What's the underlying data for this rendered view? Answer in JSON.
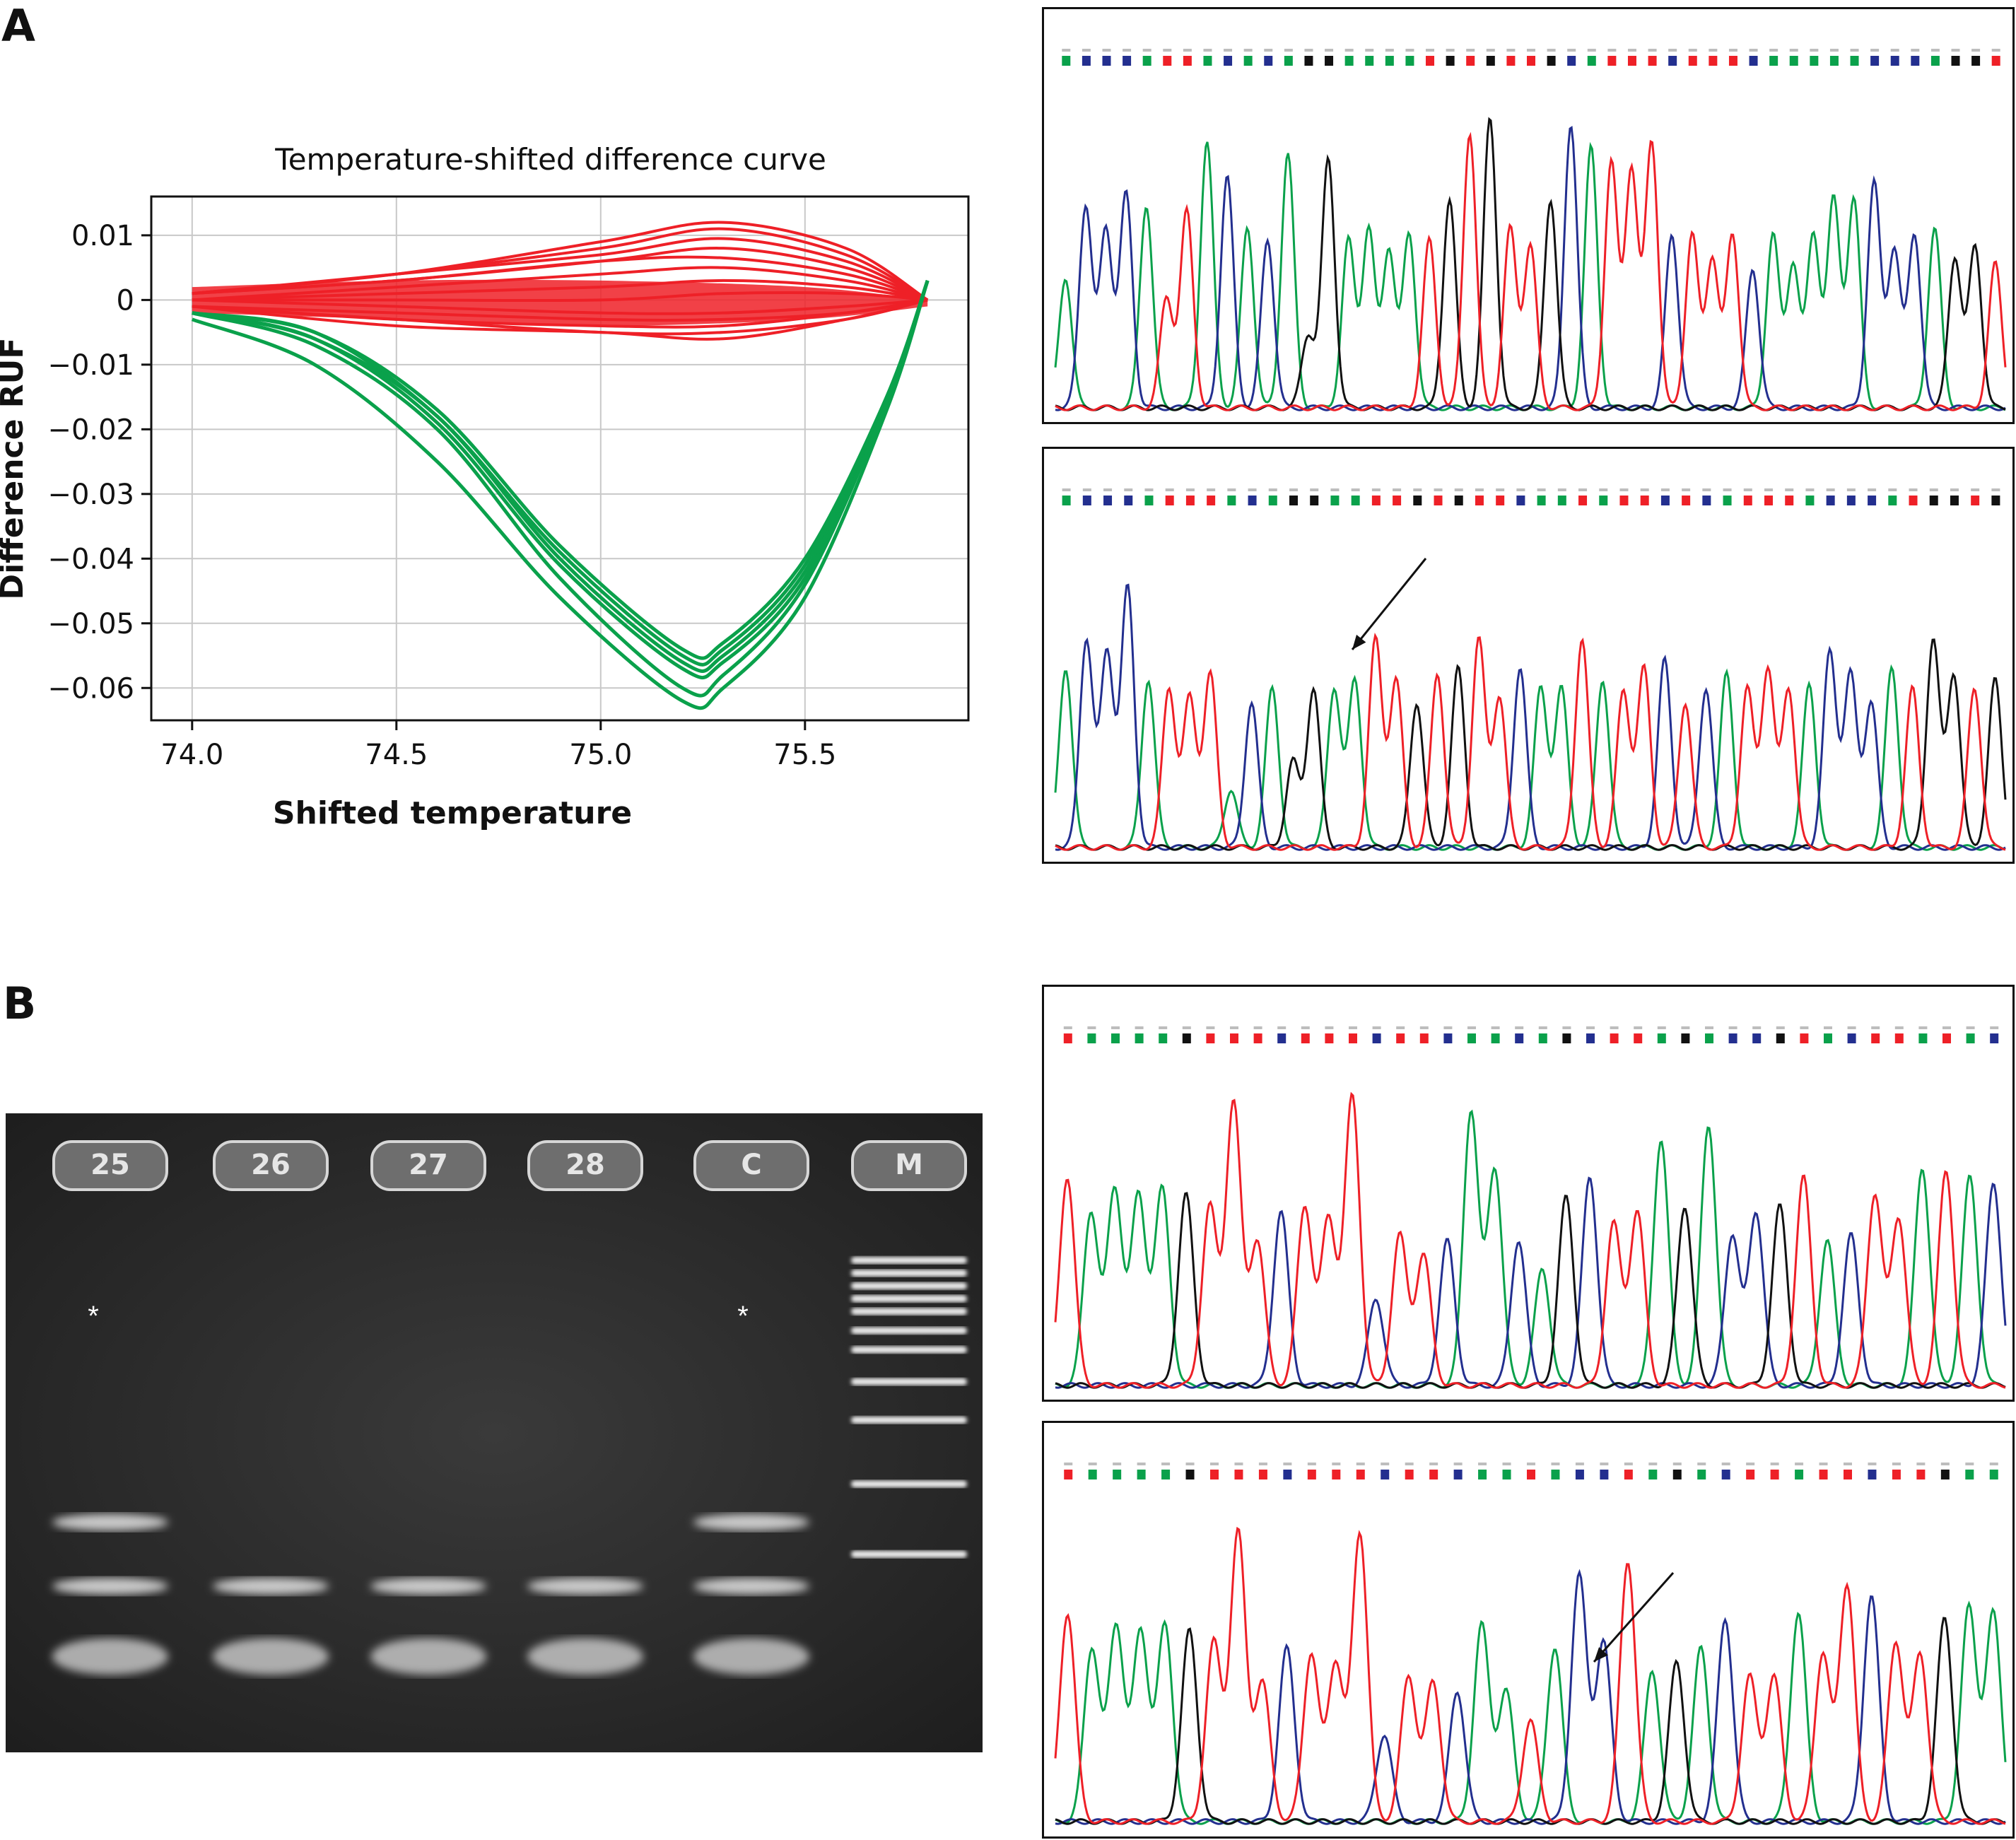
{
  "panel_labels": {
    "a": "A",
    "b": "B"
  },
  "chart_data": [
    {
      "type": "line",
      "title": "Temperature-shifted difference curve",
      "xlabel": "Shifted temperature",
      "ylabel": "Difference RUF",
      "xlim": [
        73.9,
        75.9
      ],
      "ylim": [
        -0.065,
        0.016
      ],
      "xticks": [
        74.0,
        74.5,
        75.0,
        75.5
      ],
      "xtick_labels": [
        "74.0",
        "74.5",
        "75.0",
        "75.5"
      ],
      "yticks": [
        0.01,
        0,
        -0.01,
        -0.02,
        -0.03,
        -0.04,
        -0.05,
        -0.06
      ],
      "ytick_labels": [
        "0.01",
        "0",
        "−0.01",
        "−0.02",
        "−0.03",
        "−0.04",
        "−0.05",
        "−0.06"
      ],
      "grid": true,
      "colors": {
        "wild_type": "#ee2027",
        "variant": "#0aa14b"
      },
      "series": [
        {
          "group": "wild_type",
          "x": [
            74.0,
            74.5,
            75.0,
            75.3,
            75.6,
            75.8
          ],
          "y": [
            0.001,
            0.004,
            0.009,
            0.012,
            0.008,
            0.0
          ]
        },
        {
          "group": "wild_type",
          "x": [
            74.0,
            74.5,
            75.0,
            75.3,
            75.6,
            75.8
          ],
          "y": [
            0.001,
            0.004,
            0.008,
            0.011,
            0.007,
            0.0
          ]
        },
        {
          "group": "wild_type",
          "x": [
            74.0,
            74.5,
            75.0,
            75.3,
            75.6,
            75.8
          ],
          "y": [
            0.001,
            0.004,
            0.007,
            0.0095,
            0.006,
            0.0
          ]
        },
        {
          "group": "wild_type",
          "x": [
            74.0,
            74.5,
            75.0,
            75.3,
            75.6,
            75.8
          ],
          "y": [
            0.001,
            0.003,
            0.006,
            0.008,
            0.005,
            0.0
          ]
        },
        {
          "group": "wild_type",
          "x": [
            74.0,
            74.5,
            75.0,
            75.3,
            75.6,
            75.8
          ],
          "y": [
            0.001,
            0.003,
            0.006,
            0.0065,
            0.004,
            0.0
          ]
        },
        {
          "group": "wild_type",
          "x": [
            74.0,
            74.5,
            75.0,
            75.3,
            75.6,
            75.8
          ],
          "y": [
            0.0,
            0.002,
            0.004,
            0.005,
            0.003,
            0.0
          ]
        },
        {
          "group": "wild_type",
          "x": [
            74.0,
            74.5,
            75.0,
            75.3,
            75.6,
            75.8
          ],
          "y": [
            0.0,
            0.001,
            0.002,
            0.003,
            0.002,
            0.0
          ]
        },
        {
          "group": "wild_type",
          "x": [
            74.0,
            74.5,
            75.0,
            75.3,
            75.6,
            75.8
          ],
          "y": [
            0.0,
            0.0,
            0.0,
            0.001,
            0.001,
            0.0
          ]
        },
        {
          "group": "wild_type",
          "x": [
            74.0,
            74.5,
            75.0,
            75.3,
            75.6,
            75.8
          ],
          "y": [
            0.0,
            -0.001,
            -0.002,
            -0.002,
            -0.001,
            0.0
          ]
        },
        {
          "group": "wild_type",
          "x": [
            74.0,
            74.5,
            75.0,
            75.3,
            75.6,
            75.8
          ],
          "y": [
            -0.001,
            -0.002,
            -0.003,
            -0.003,
            -0.002,
            0.0
          ]
        },
        {
          "group": "wild_type",
          "x": [
            74.0,
            74.5,
            75.0,
            75.3,
            75.6,
            75.8
          ],
          "y": [
            -0.001,
            -0.003,
            -0.004,
            -0.004,
            -0.002,
            0.0
          ]
        },
        {
          "group": "wild_type",
          "x": [
            74.0,
            74.5,
            75.0,
            75.3,
            75.6,
            75.8
          ],
          "y": [
            -0.001,
            -0.003,
            -0.005,
            -0.005,
            -0.003,
            0.0
          ]
        },
        {
          "group": "wild_type",
          "x": [
            74.0,
            74.5,
            75.0,
            75.3,
            75.6,
            75.8
          ],
          "y": [
            -0.001,
            -0.004,
            -0.005,
            -0.006,
            -0.003,
            0.0
          ]
        },
        {
          "group": "variant",
          "x": [
            74.0,
            74.3,
            74.6,
            74.9,
            75.2,
            75.3,
            75.5,
            75.7,
            75.8
          ],
          "y": [
            -0.002,
            -0.005,
            -0.017,
            -0.038,
            -0.054,
            -0.053,
            -0.04,
            -0.015,
            0.003
          ]
        },
        {
          "group": "variant",
          "x": [
            74.0,
            74.3,
            74.6,
            74.9,
            75.2,
            75.3,
            75.5,
            75.7,
            75.8
          ],
          "y": [
            -0.002,
            -0.005,
            -0.018,
            -0.039,
            -0.055,
            -0.054,
            -0.041,
            -0.015,
            0.003
          ]
        },
        {
          "group": "variant",
          "x": [
            74.0,
            74.3,
            74.6,
            74.9,
            75.2,
            75.3,
            75.5,
            75.7,
            75.8
          ],
          "y": [
            -0.002,
            -0.006,
            -0.018,
            -0.04,
            -0.056,
            -0.055,
            -0.042,
            -0.016,
            0.003
          ]
        },
        {
          "group": "variant",
          "x": [
            74.0,
            74.3,
            74.6,
            74.9,
            75.2,
            75.3,
            75.5,
            75.7,
            75.8
          ],
          "y": [
            -0.002,
            -0.006,
            -0.019,
            -0.041,
            -0.057,
            -0.056,
            -0.043,
            -0.016,
            0.003
          ]
        },
        {
          "group": "variant",
          "x": [
            74.0,
            74.3,
            74.6,
            74.9,
            75.2,
            75.3,
            75.5,
            75.7,
            75.8
          ],
          "y": [
            -0.002,
            -0.007,
            -0.02,
            -0.043,
            -0.06,
            -0.058,
            -0.044,
            -0.016,
            0.003
          ]
        },
        {
          "group": "variant",
          "x": [
            74.0,
            74.3,
            74.6,
            74.9,
            75.2,
            75.3,
            75.5,
            75.7,
            75.8
          ],
          "y": [
            -0.003,
            -0.01,
            -0.025,
            -0.046,
            -0.062,
            -0.06,
            -0.046,
            -0.017,
            0.003
          ]
        }
      ]
    }
  ],
  "chromatograms": {
    "colors": {
      "A": "#0aa14b",
      "C": "#232f8f",
      "G": "#111111",
      "T": "#ee2027",
      "unresolved": "#bdbdbd"
    },
    "panel_a_top": {
      "bases": "ACCCATTACACAGGAAAATGTGTTGCATTTCTTTCAAAAACCCAGGT",
      "peaks": [
        0.45,
        0.7,
        0.62,
        0.74,
        0.7,
        0.38,
        0.68,
        0.92,
        0.8,
        0.62,
        0.58,
        0.88,
        0.25,
        0.86,
        0.58,
        0.62,
        0.55,
        0.6,
        0.58,
        0.72,
        0.95,
        1.0,
        0.62,
        0.56,
        0.72,
        0.98,
        0.9,
        0.85,
        0.83,
        0.92,
        0.6,
        0.6,
        0.52,
        0.6,
        0.48,
        0.6,
        0.5,
        0.6,
        0.72,
        0.72,
        0.78,
        0.55,
        0.6,
        0.62,
        0.52,
        0.56,
        0.5
      ],
      "arrow": false
    },
    "panel_a_bottom": {
      "bases": "ACCCATTTACAGGAATTGTGTTCAATATTCTCATTTACCCATGGTG",
      "peaks": [
        0.62,
        0.72,
        0.68,
        0.9,
        0.58,
        0.55,
        0.52,
        0.6,
        0.2,
        0.5,
        0.55,
        0.3,
        0.55,
        0.55,
        0.58,
        0.72,
        0.58,
        0.5,
        0.6,
        0.62,
        0.72,
        0.52,
        0.62,
        0.55,
        0.55,
        0.72,
        0.58,
        0.54,
        0.62,
        0.65,
        0.5,
        0.55,
        0.6,
        0.55,
        0.62,
        0.55,
        0.56,
        0.68,
        0.6,
        0.5,
        0.62,
        0.55,
        0.72,
        0.6,
        0.55,
        0.58
      ],
      "arrow": true
    },
    "panel_b_top": {
      "bases": "TAAAAGTTTCTTTCTTCAACAGCTTAGACCGTACTTATAC",
      "peaks": [
        0.72,
        0.6,
        0.68,
        0.66,
        0.68,
        0.66,
        0.62,
        0.98,
        0.5,
        0.6,
        0.62,
        0.58,
        1.0,
        0.3,
        0.52,
        0.45,
        0.5,
        0.95,
        0.75,
        0.5,
        0.4,
        0.65,
        0.72,
        0.56,
        0.6,
        0.85,
        0.62,
        0.9,
        0.52,
        0.6,
        0.62,
        0.72,
        0.5,
        0.52,
        0.66,
        0.58,
        0.75,
        0.74,
        0.72,
        0.7
      ],
      "arrow": false
    },
    "panel_b_bottom": {
      "bases": "TAAAAGTTTCTTTCTTCAATACCTAGACTTATTCTTGAA",
      "peaks": [
        0.72,
        0.6,
        0.68,
        0.66,
        0.68,
        0.66,
        0.62,
        1.0,
        0.48,
        0.6,
        0.58,
        0.55,
        1.0,
        0.3,
        0.5,
        0.48,
        0.45,
        0.68,
        0.45,
        0.35,
        0.6,
        0.85,
        0.62,
        0.9,
        0.52,
        0.55,
        0.6,
        0.7,
        0.5,
        0.5,
        0.72,
        0.58,
        0.82,
        0.78,
        0.62,
        0.58,
        0.7,
        0.74,
        0.72
      ],
      "arrow": true
    }
  },
  "gel": {
    "lanes": [
      {
        "label": "25",
        "bands": [
          0.64,
          0.74,
          0.85
        ],
        "star": true
      },
      {
        "label": "26",
        "bands": [
          0.74,
          0.85
        ],
        "star": false
      },
      {
        "label": "27",
        "bands": [
          0.74,
          0.85
        ],
        "star": false
      },
      {
        "label": "28",
        "bands": [
          0.74,
          0.85
        ],
        "star": false
      },
      {
        "label": "C",
        "bands": [
          0.64,
          0.74,
          0.85
        ],
        "star": true
      },
      {
        "label": "M",
        "ladder": [
          0.23,
          0.25,
          0.27,
          0.29,
          0.31,
          0.34,
          0.37,
          0.42,
          0.48,
          0.58,
          0.69
        ],
        "star": false
      }
    ]
  }
}
